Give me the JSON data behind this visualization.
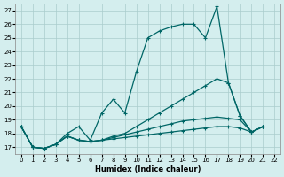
{
  "xlabel": "Humidex (Indice chaleur)",
  "ylabel": "",
  "background_color": "#d4eeee",
  "grid_color": "#aacccc",
  "line_color": "#006666",
  "xlim": [
    -0.5,
    22.5
  ],
  "ylim": [
    16.5,
    27.5
  ],
  "yticks": [
    17,
    18,
    19,
    20,
    21,
    22,
    23,
    24,
    25,
    26,
    27
  ],
  "xticks": [
    0,
    1,
    2,
    3,
    4,
    5,
    6,
    7,
    8,
    9,
    10,
    11,
    12,
    13,
    14,
    15,
    16,
    17,
    18,
    19,
    20,
    21,
    22
  ],
  "series": [
    [
      18.5,
      17.0,
      16.9,
      17.2,
      18.0,
      18.5,
      17.5,
      19.5,
      20.5,
      19.5,
      22.5,
      25.0,
      25.5,
      25.8,
      26.0,
      26.0,
      25.0,
      27.3,
      21.7,
      19.3,
      18.1,
      18.5
    ],
    [
      18.5,
      17.0,
      16.9,
      17.2,
      17.8,
      17.5,
      17.4,
      17.5,
      17.8,
      18.0,
      18.5,
      19.0,
      19.5,
      20.0,
      20.5,
      21.0,
      21.5,
      22.0,
      21.7,
      19.3,
      18.1,
      18.5
    ],
    [
      18.5,
      17.0,
      16.9,
      17.2,
      17.8,
      17.5,
      17.4,
      17.5,
      17.7,
      17.9,
      18.1,
      18.3,
      18.5,
      18.7,
      18.9,
      19.0,
      19.1,
      19.2,
      19.1,
      19.0,
      18.1,
      18.5
    ],
    [
      18.5,
      17.0,
      16.9,
      17.2,
      17.8,
      17.5,
      17.4,
      17.5,
      17.6,
      17.7,
      17.8,
      17.9,
      18.0,
      18.1,
      18.2,
      18.3,
      18.4,
      18.5,
      18.5,
      18.4,
      18.1,
      18.5
    ]
  ]
}
